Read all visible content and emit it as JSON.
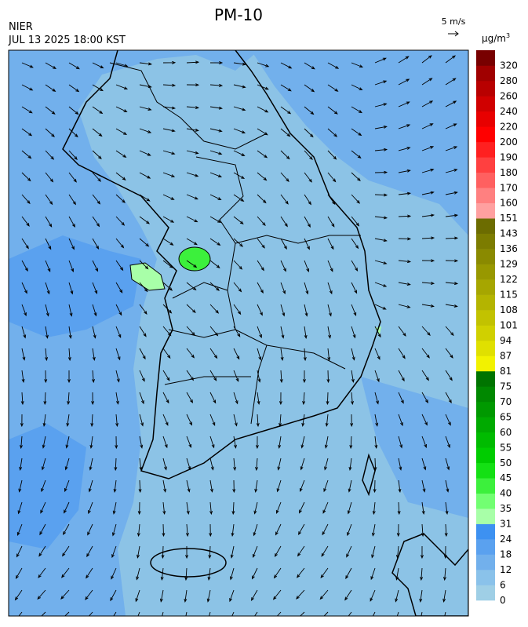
{
  "header": {
    "title": "PM-10",
    "agency": "NIER",
    "datetime": "JUL 13 2025 18:00 KST",
    "wind_scale": "5 m/s"
  },
  "legend": {
    "unit": {
      "base": "μg/m",
      "sup": "3"
    },
    "levels": [
      {
        "label": "0",
        "color": "#9fcfe6"
      },
      {
        "label": "6",
        "color": "#8ac2ea"
      },
      {
        "label": "12",
        "color": "#72b0ec"
      },
      {
        "label": "18",
        "color": "#5aa1ef"
      },
      {
        "label": "24",
        "color": "#3d91f1"
      },
      {
        "label": "31",
        "color": "#a8ffa8"
      },
      {
        "label": "35",
        "color": "#72ff72"
      },
      {
        "label": "40",
        "color": "#3cf03c"
      },
      {
        "label": "45",
        "color": "#14e014"
      },
      {
        "label": "50",
        "color": "#00cc00"
      },
      {
        "label": "55",
        "color": "#00bb00"
      },
      {
        "label": "60",
        "color": "#00aa00"
      },
      {
        "label": "65",
        "color": "#009900"
      },
      {
        "label": "70",
        "color": "#008800"
      },
      {
        "label": "75",
        "color": "#007400"
      },
      {
        "label": "81",
        "color": "#f2f200"
      },
      {
        "label": "87",
        "color": "#e0e000"
      },
      {
        "label": "94",
        "color": "#d0d000"
      },
      {
        "label": "101",
        "color": "#c2c200"
      },
      {
        "label": "108",
        "color": "#b4b400"
      },
      {
        "label": "115",
        "color": "#a6a600"
      },
      {
        "label": "122",
        "color": "#989800"
      },
      {
        "label": "129",
        "color": "#8a8a00"
      },
      {
        "label": "136",
        "color": "#7c7c00"
      },
      {
        "label": "143",
        "color": "#6c6c00"
      },
      {
        "label": "151",
        "color": "#ffa0a0"
      },
      {
        "label": "160",
        "color": "#ff8080"
      },
      {
        "label": "170",
        "color": "#ff6060"
      },
      {
        "label": "180",
        "color": "#ff4040"
      },
      {
        "label": "190",
        "color": "#ff2020"
      },
      {
        "label": "200",
        "color": "#ff0000"
      },
      {
        "label": "220",
        "color": "#e80000"
      },
      {
        "label": "240",
        "color": "#d00000"
      },
      {
        "label": "260",
        "color": "#b80000"
      },
      {
        "label": "280",
        "color": "#a00000"
      },
      {
        "label": "320",
        "color": "#780000"
      }
    ]
  }
}
